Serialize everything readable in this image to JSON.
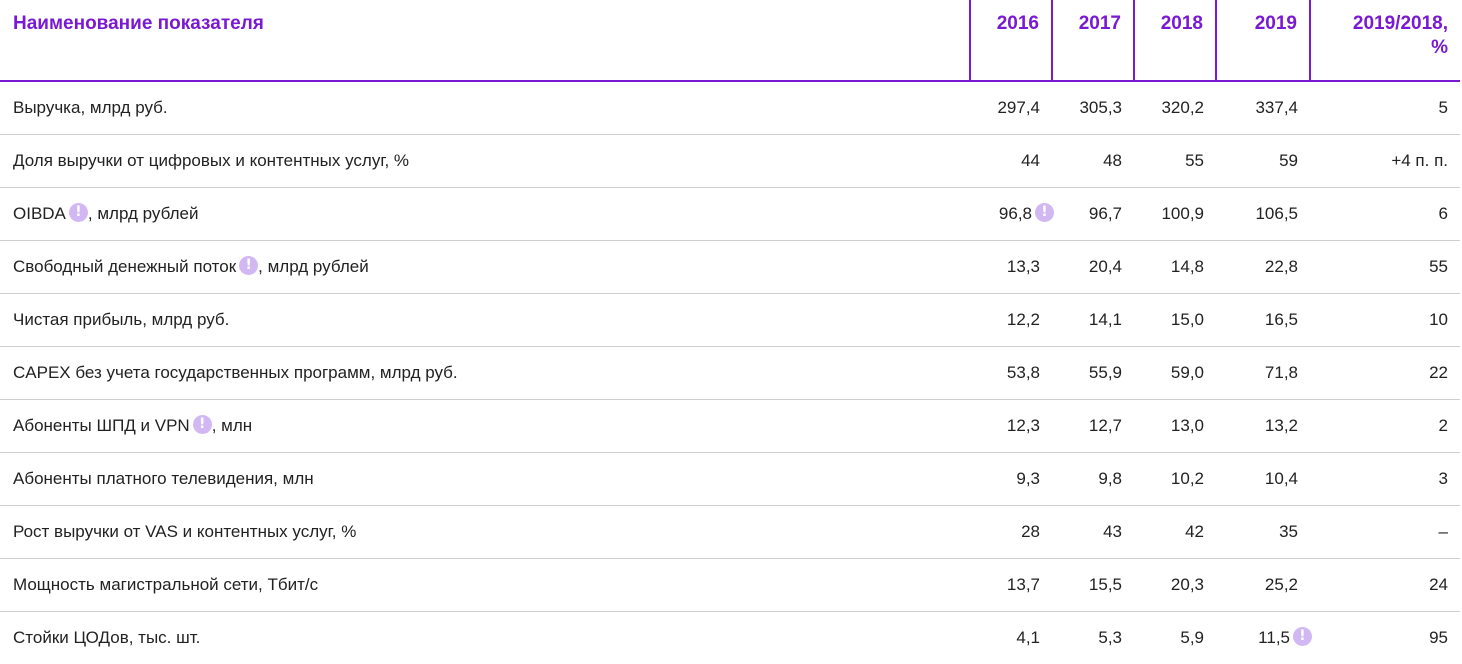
{
  "table": {
    "headers": {
      "indicator": "Наименование показателя",
      "y2016": "2016",
      "y2017": "2017",
      "y2018": "2018",
      "y2019": "2019",
      "change_line1": "2019/2018,",
      "change_line2": "%"
    },
    "rows": [
      {
        "name": "Выручка, млрд руб.",
        "name_pre": "Выручка, млрд руб.",
        "name_post": "",
        "name_note": false,
        "values": [
          "297,4",
          "305,3",
          "320,2",
          "337,4"
        ],
        "value_notes": [
          false,
          false,
          false,
          false
        ],
        "change": "5"
      },
      {
        "name_pre": "Доля выручки от цифровых и контентных услуг, %",
        "name_post": "",
        "name_note": false,
        "values": [
          "44",
          "48",
          "55",
          "59"
        ],
        "value_notes": [
          false,
          false,
          false,
          false
        ],
        "change": "+4 п. п."
      },
      {
        "name_pre": "OIBDA",
        "name_post": ", млрд рублей",
        "name_note": true,
        "values": [
          "96,8",
          "96,7",
          "100,9",
          "106,5"
        ],
        "value_notes": [
          true,
          false,
          false,
          false
        ],
        "change": "6"
      },
      {
        "name_pre": "Свободный денежный поток",
        "name_post": ", млрд рублей",
        "name_note": true,
        "values": [
          "13,3",
          "20,4",
          "14,8",
          "22,8"
        ],
        "value_notes": [
          false,
          false,
          false,
          false
        ],
        "change": "55"
      },
      {
        "name_pre": "Чистая прибыль, млрд руб.",
        "name_post": "",
        "name_note": false,
        "values": [
          "12,2",
          "14,1",
          "15,0",
          "16,5"
        ],
        "value_notes": [
          false,
          false,
          false,
          false
        ],
        "change": "10"
      },
      {
        "name_pre": "CAPEX без учета государственных программ, млрд руб.",
        "name_post": "",
        "name_note": false,
        "values": [
          "53,8",
          "55,9",
          "59,0",
          "71,8"
        ],
        "value_notes": [
          false,
          false,
          false,
          false
        ],
        "change": "22"
      },
      {
        "name_pre": "Абоненты ШПД и VPN",
        "name_post": ", млн",
        "name_note": true,
        "values": [
          "12,3",
          "12,7",
          "13,0",
          "13,2"
        ],
        "value_notes": [
          false,
          false,
          false,
          false
        ],
        "change": "2"
      },
      {
        "name_pre": "Абоненты платного телевидения, млн",
        "name_post": "",
        "name_note": false,
        "values": [
          "9,3",
          "9,8",
          "10,2",
          "10,4"
        ],
        "value_notes": [
          false,
          false,
          false,
          false
        ],
        "change": "3"
      },
      {
        "name_pre": "Рост выручки от VAS и контентных услуг, %",
        "name_post": "",
        "name_note": false,
        "values": [
          "28",
          "43",
          "42",
          "35"
        ],
        "value_notes": [
          false,
          false,
          false,
          false
        ],
        "change": "–"
      },
      {
        "name_pre": "Мощность магистральной сети, Тбит/с",
        "name_post": "",
        "name_note": false,
        "values": [
          "13,7",
          "15,5",
          "20,3",
          "25,2"
        ],
        "value_notes": [
          false,
          false,
          false,
          false
        ],
        "change": "24"
      },
      {
        "name_pre": "Стойки ЦОДов, тыс. шт.",
        "name_post": "",
        "name_note": false,
        "values": [
          "4,1",
          "5,3",
          "5,9",
          "11,5"
        ],
        "value_notes": [
          false,
          false,
          false,
          true
        ],
        "change": "95"
      }
    ]
  },
  "note_icon": {
    "glyph": "!",
    "icon": "exclamation-circle-icon",
    "color": "#d2b8f3"
  },
  "colors": {
    "accent": "#7a19d4",
    "text": "#222222",
    "row_divider": "#cfcfcf"
  }
}
